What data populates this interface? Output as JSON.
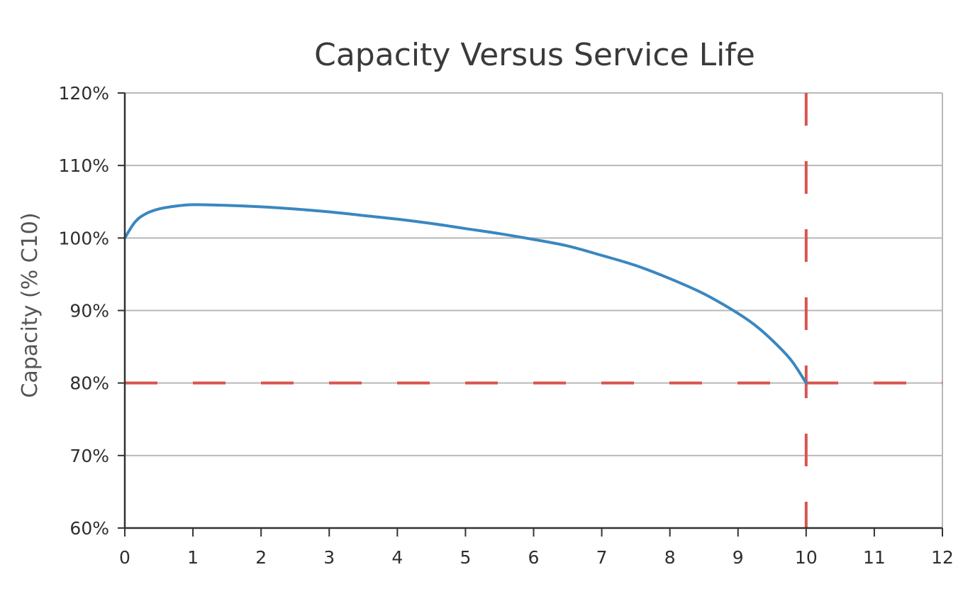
{
  "chart_data": {
    "type": "line",
    "title": "Capacity Versus Service Life",
    "xlabel": "",
    "ylabel": "Capacity (% C10)",
    "xlim": [
      0,
      12
    ],
    "ylim": [
      60,
      120
    ],
    "x_ticks": [
      "0",
      "1",
      "2",
      "3",
      "4",
      "5",
      "6",
      "7",
      "8",
      "9",
      "10",
      "11",
      "12"
    ],
    "y_ticks": [
      "60%",
      "70%",
      "80%",
      "90%",
      "100%",
      "110%",
      "120%"
    ],
    "grid": "horizontal",
    "series": [
      {
        "color": "#3a87c0",
        "x": [
          0,
          0.15,
          0.3,
          0.5,
          0.75,
          1,
          1.5,
          2,
          2.5,
          3,
          3.5,
          4,
          4.5,
          5,
          5.5,
          6,
          6.5,
          7,
          7.5,
          8,
          8.5,
          9,
          9.3,
          9.6,
          9.8,
          10
        ],
        "y": [
          100,
          102.2,
          103.3,
          104.0,
          104.4,
          104.6,
          104.5,
          104.3,
          104.0,
          103.6,
          103.1,
          102.6,
          102.0,
          101.3,
          100.6,
          99.8,
          98.9,
          97.6,
          96.2,
          94.4,
          92.3,
          89.6,
          87.6,
          85.0,
          82.9,
          80.0
        ]
      }
    ],
    "reference_lines": [
      {
        "orientation": "horizontal",
        "value": 80,
        "style": "dashed",
        "color": "#d9534f"
      },
      {
        "orientation": "vertical",
        "value": 10,
        "style": "dashed",
        "color": "#d9534f"
      }
    ],
    "colors": {
      "curve": "#3a87c0",
      "reference": "#d9534f",
      "grid": "#b8b8b8",
      "axis": "#333333"
    }
  }
}
